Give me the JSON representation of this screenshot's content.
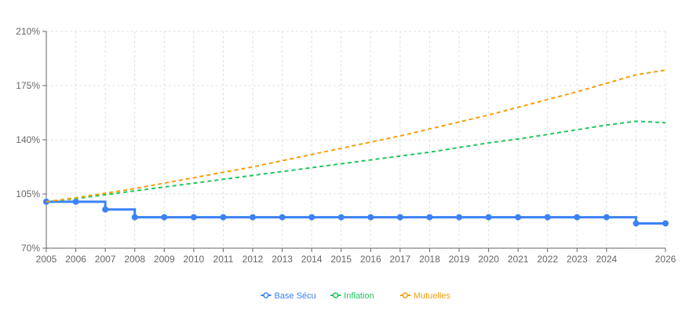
{
  "chart_data": {
    "type": "line",
    "title": "",
    "xlabel": "",
    "ylabel": "",
    "x": [
      2005,
      2006,
      2007,
      2008,
      2009,
      2010,
      2011,
      2012,
      2013,
      2014,
      2015,
      2016,
      2017,
      2018,
      2019,
      2020,
      2021,
      2022,
      2023,
      2024,
      2025,
      2026
    ],
    "x_tick_labels": [
      "2005",
      "2006",
      "2007",
      "2008",
      "2009",
      "2010",
      "2011",
      "2012",
      "2013",
      "2014",
      "2015",
      "2016",
      "2017",
      "2018",
      "2019",
      "2020",
      "2021",
      "2022",
      "2023",
      "2024",
      "",
      "2026"
    ],
    "y_ticks": [
      70,
      105,
      140,
      175,
      210
    ],
    "y_tick_labels": [
      "70%",
      "105%",
      "140%",
      "175%",
      "210%"
    ],
    "ylim": [
      70,
      210
    ],
    "grid": true,
    "legend_position": "bottom-center",
    "series": [
      {
        "name": "Base Sécu",
        "color": "#3b82f6",
        "style": "step-solid",
        "markers": true,
        "values": [
          100,
          100,
          95,
          90,
          90,
          90,
          90,
          90,
          90,
          90,
          90,
          90,
          90,
          90,
          90,
          90,
          90,
          90,
          90,
          90,
          86,
          86
        ]
      },
      {
        "name": "Inflation",
        "color": "#22c55e",
        "style": "dashed",
        "markers": false,
        "values": [
          100,
          102,
          104.5,
          107,
          109.5,
          112,
          114.5,
          117,
          119.5,
          122,
          124.5,
          127,
          129.5,
          132,
          135,
          138,
          140.5,
          143.5,
          146.5,
          149.5,
          152,
          151
        ]
      },
      {
        "name": "Mutuelles",
        "color": "#f59e0b",
        "style": "dashed",
        "markers": false,
        "values": [
          100,
          102.5,
          105.5,
          108.5,
          112,
          115.5,
          119,
          122.5,
          126.5,
          130.5,
          134.5,
          138.5,
          142.5,
          147,
          151.5,
          156,
          161,
          166,
          171,
          176.5,
          182,
          185
        ]
      }
    ]
  }
}
